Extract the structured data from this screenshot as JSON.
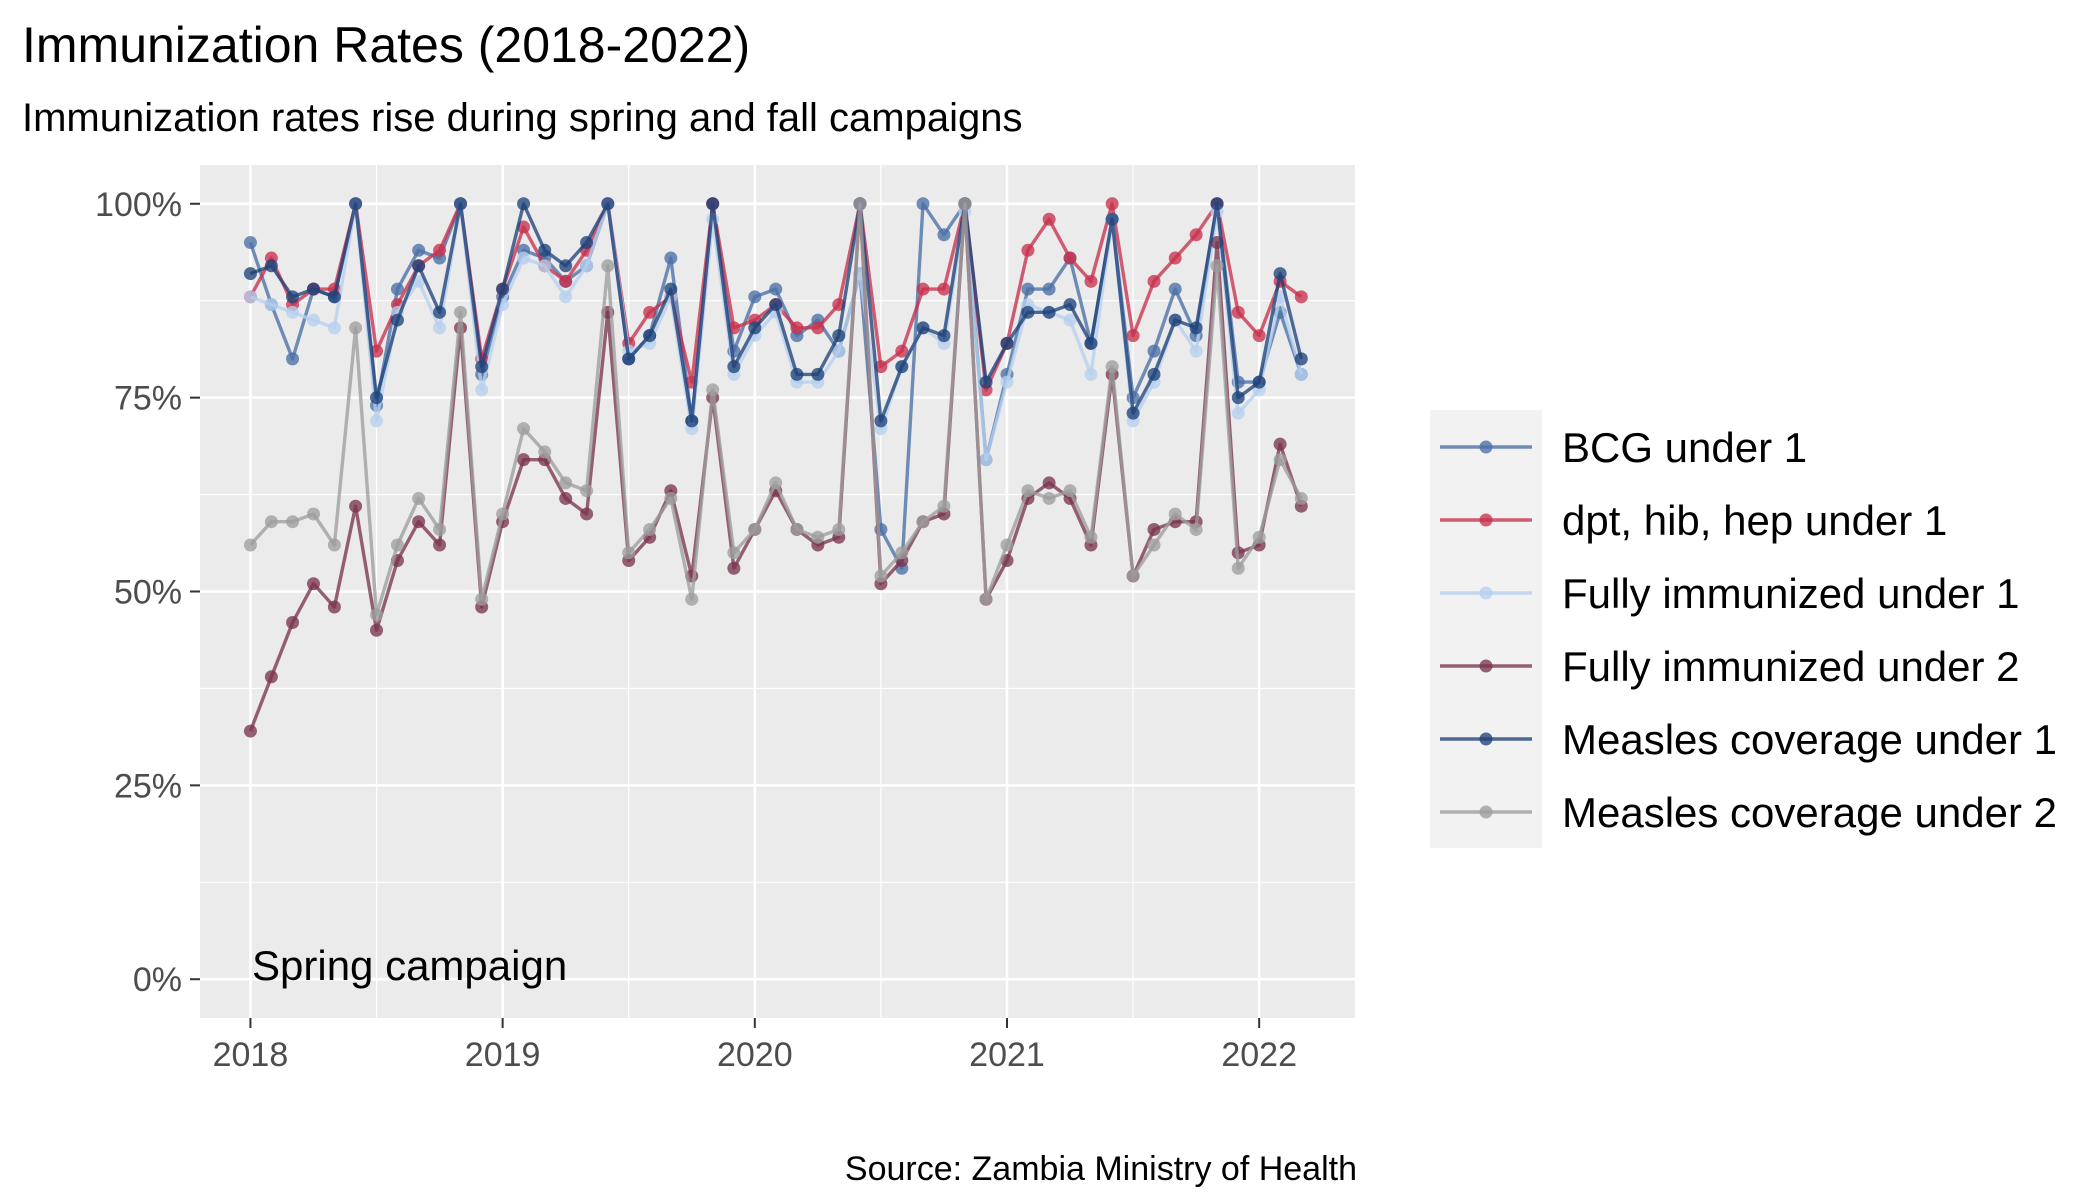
{
  "chart_data": {
    "type": "line",
    "title": "Immunization Rates (2018-2022)",
    "subtitle": "Immunization rates rise during spring and fall campaigns",
    "caption": "Source: Zambia Ministry of Health",
    "annotation": "Spring campaign",
    "xlabel": "",
    "ylabel": "",
    "x_ticks": [
      "2018",
      "2019",
      "2020",
      "2021",
      "2022"
    ],
    "y_ticks": [
      "0%",
      "25%",
      "50%",
      "75%",
      "100%"
    ],
    "xlim": [
      2017.8,
      2022.38
    ],
    "ylim": [
      -0.05,
      1.05
    ],
    "grid": true,
    "legend_position": "right",
    "x": [
      2018.0,
      2018.083,
      2018.167,
      2018.25,
      2018.333,
      2018.417,
      2018.5,
      2018.583,
      2018.667,
      2018.75,
      2018.833,
      2018.917,
      2019.0,
      2019.083,
      2019.167,
      2019.25,
      2019.333,
      2019.417,
      2019.5,
      2019.583,
      2019.667,
      2019.75,
      2019.833,
      2019.917,
      2020.0,
      2020.083,
      2020.167,
      2020.25,
      2020.333,
      2020.417,
      2020.5,
      2020.583,
      2020.667,
      2020.75,
      2020.833,
      2020.917,
      2021.0,
      2021.083,
      2021.167,
      2021.25,
      2021.333,
      2021.417,
      2021.5,
      2021.583,
      2021.667,
      2021.75,
      2021.833,
      2021.917,
      2022.0,
      2022.083,
      2022.167
    ],
    "series": [
      {
        "name": "BCG under 1",
        "color": "#4a70a6",
        "values": [
          0.95,
          0.87,
          0.8,
          0.89,
          0.88,
          1.0,
          0.74,
          0.89,
          0.94,
          0.93,
          1.0,
          0.78,
          0.88,
          0.94,
          0.93,
          0.9,
          0.92,
          1.0,
          0.8,
          0.83,
          0.93,
          0.72,
          1.0,
          0.81,
          0.88,
          0.89,
          0.83,
          0.85,
          0.81,
          0.91,
          0.58,
          0.53,
          1.0,
          0.96,
          1.0,
          0.67,
          0.78,
          0.89,
          0.89,
          0.93,
          0.82,
          0.98,
          0.75,
          0.81,
          0.89,
          0.83,
          1.0,
          0.77,
          0.77,
          0.86,
          0.78
        ]
      },
      {
        "name": "dpt, hib, hep under 1",
        "color": "#c8314d",
        "values": [
          0.88,
          0.93,
          0.87,
          0.89,
          0.89,
          1.0,
          0.81,
          0.87,
          0.92,
          0.94,
          1.0,
          0.8,
          0.89,
          0.97,
          0.92,
          0.9,
          0.94,
          1.0,
          0.82,
          0.86,
          0.88,
          0.77,
          1.0,
          0.84,
          0.85,
          0.87,
          0.84,
          0.84,
          0.87,
          1.0,
          0.79,
          0.81,
          0.89,
          0.89,
          1.0,
          0.76,
          0.82,
          0.94,
          0.98,
          0.93,
          0.9,
          1.0,
          0.83,
          0.9,
          0.93,
          0.96,
          1.0,
          0.86,
          0.83,
          0.9,
          0.88
        ]
      },
      {
        "name": "Fully immunized under 1",
        "color": "#b6cfee",
        "values": [
          0.88,
          0.87,
          0.86,
          0.85,
          0.84,
          1.0,
          0.72,
          0.86,
          0.9,
          0.84,
          1.0,
          0.76,
          0.87,
          0.93,
          0.92,
          0.88,
          0.92,
          1.0,
          0.81,
          0.82,
          0.88,
          0.71,
          0.98,
          0.78,
          0.83,
          0.86,
          0.77,
          0.77,
          0.81,
          0.91,
          0.71,
          0.79,
          0.84,
          0.82,
          0.99,
          0.67,
          0.77,
          0.87,
          0.86,
          0.85,
          0.78,
          0.98,
          0.72,
          0.77,
          0.85,
          0.81,
          0.99,
          0.73,
          0.76,
          0.88,
          0.78
        ]
      },
      {
        "name": "Fully immunized under 2",
        "color": "#7a3550",
        "values": [
          0.32,
          0.39,
          0.46,
          0.51,
          0.48,
          0.61,
          0.45,
          0.54,
          0.59,
          0.56,
          0.84,
          0.48,
          0.59,
          0.67,
          0.67,
          0.62,
          0.6,
          0.86,
          0.54,
          0.57,
          0.63,
          0.52,
          0.75,
          0.53,
          0.58,
          0.63,
          0.58,
          0.56,
          0.57,
          1.0,
          0.51,
          0.54,
          0.59,
          0.6,
          1.0,
          0.49,
          0.54,
          0.62,
          0.64,
          0.62,
          0.56,
          0.78,
          0.52,
          0.58,
          0.59,
          0.59,
          0.95,
          0.55,
          0.56,
          0.69,
          0.61
        ]
      },
      {
        "name": "Measles coverage under 1",
        "color": "#1f437a",
        "values": [
          0.91,
          0.92,
          0.88,
          0.89,
          0.88,
          1.0,
          0.75,
          0.85,
          0.92,
          0.86,
          1.0,
          0.79,
          0.89,
          1.0,
          0.94,
          0.92,
          0.95,
          1.0,
          0.8,
          0.83,
          0.89,
          0.72,
          1.0,
          0.79,
          0.84,
          0.87,
          0.78,
          0.78,
          0.83,
          1.0,
          0.72,
          0.79,
          0.84,
          0.83,
          1.0,
          0.77,
          0.82,
          0.86,
          0.86,
          0.87,
          0.82,
          0.98,
          0.73,
          0.78,
          0.85,
          0.84,
          1.0,
          0.75,
          0.77,
          0.91,
          0.8
        ]
      },
      {
        "name": "Measles coverage under 2",
        "color": "#9e9e9e",
        "values": [
          0.56,
          0.59,
          0.59,
          0.6,
          0.56,
          0.84,
          0.47,
          0.56,
          0.62,
          0.58,
          0.86,
          0.49,
          0.6,
          0.71,
          0.68,
          0.64,
          0.63,
          0.92,
          0.55,
          0.58,
          0.62,
          0.49,
          0.76,
          0.55,
          0.58,
          0.64,
          0.58,
          0.57,
          0.58,
          1.0,
          0.52,
          0.55,
          0.59,
          0.61,
          1.0,
          0.49,
          0.56,
          0.63,
          0.62,
          0.63,
          0.57,
          0.79,
          0.52,
          0.56,
          0.6,
          0.58,
          0.92,
          0.53,
          0.57,
          0.67,
          0.62
        ]
      }
    ]
  }
}
